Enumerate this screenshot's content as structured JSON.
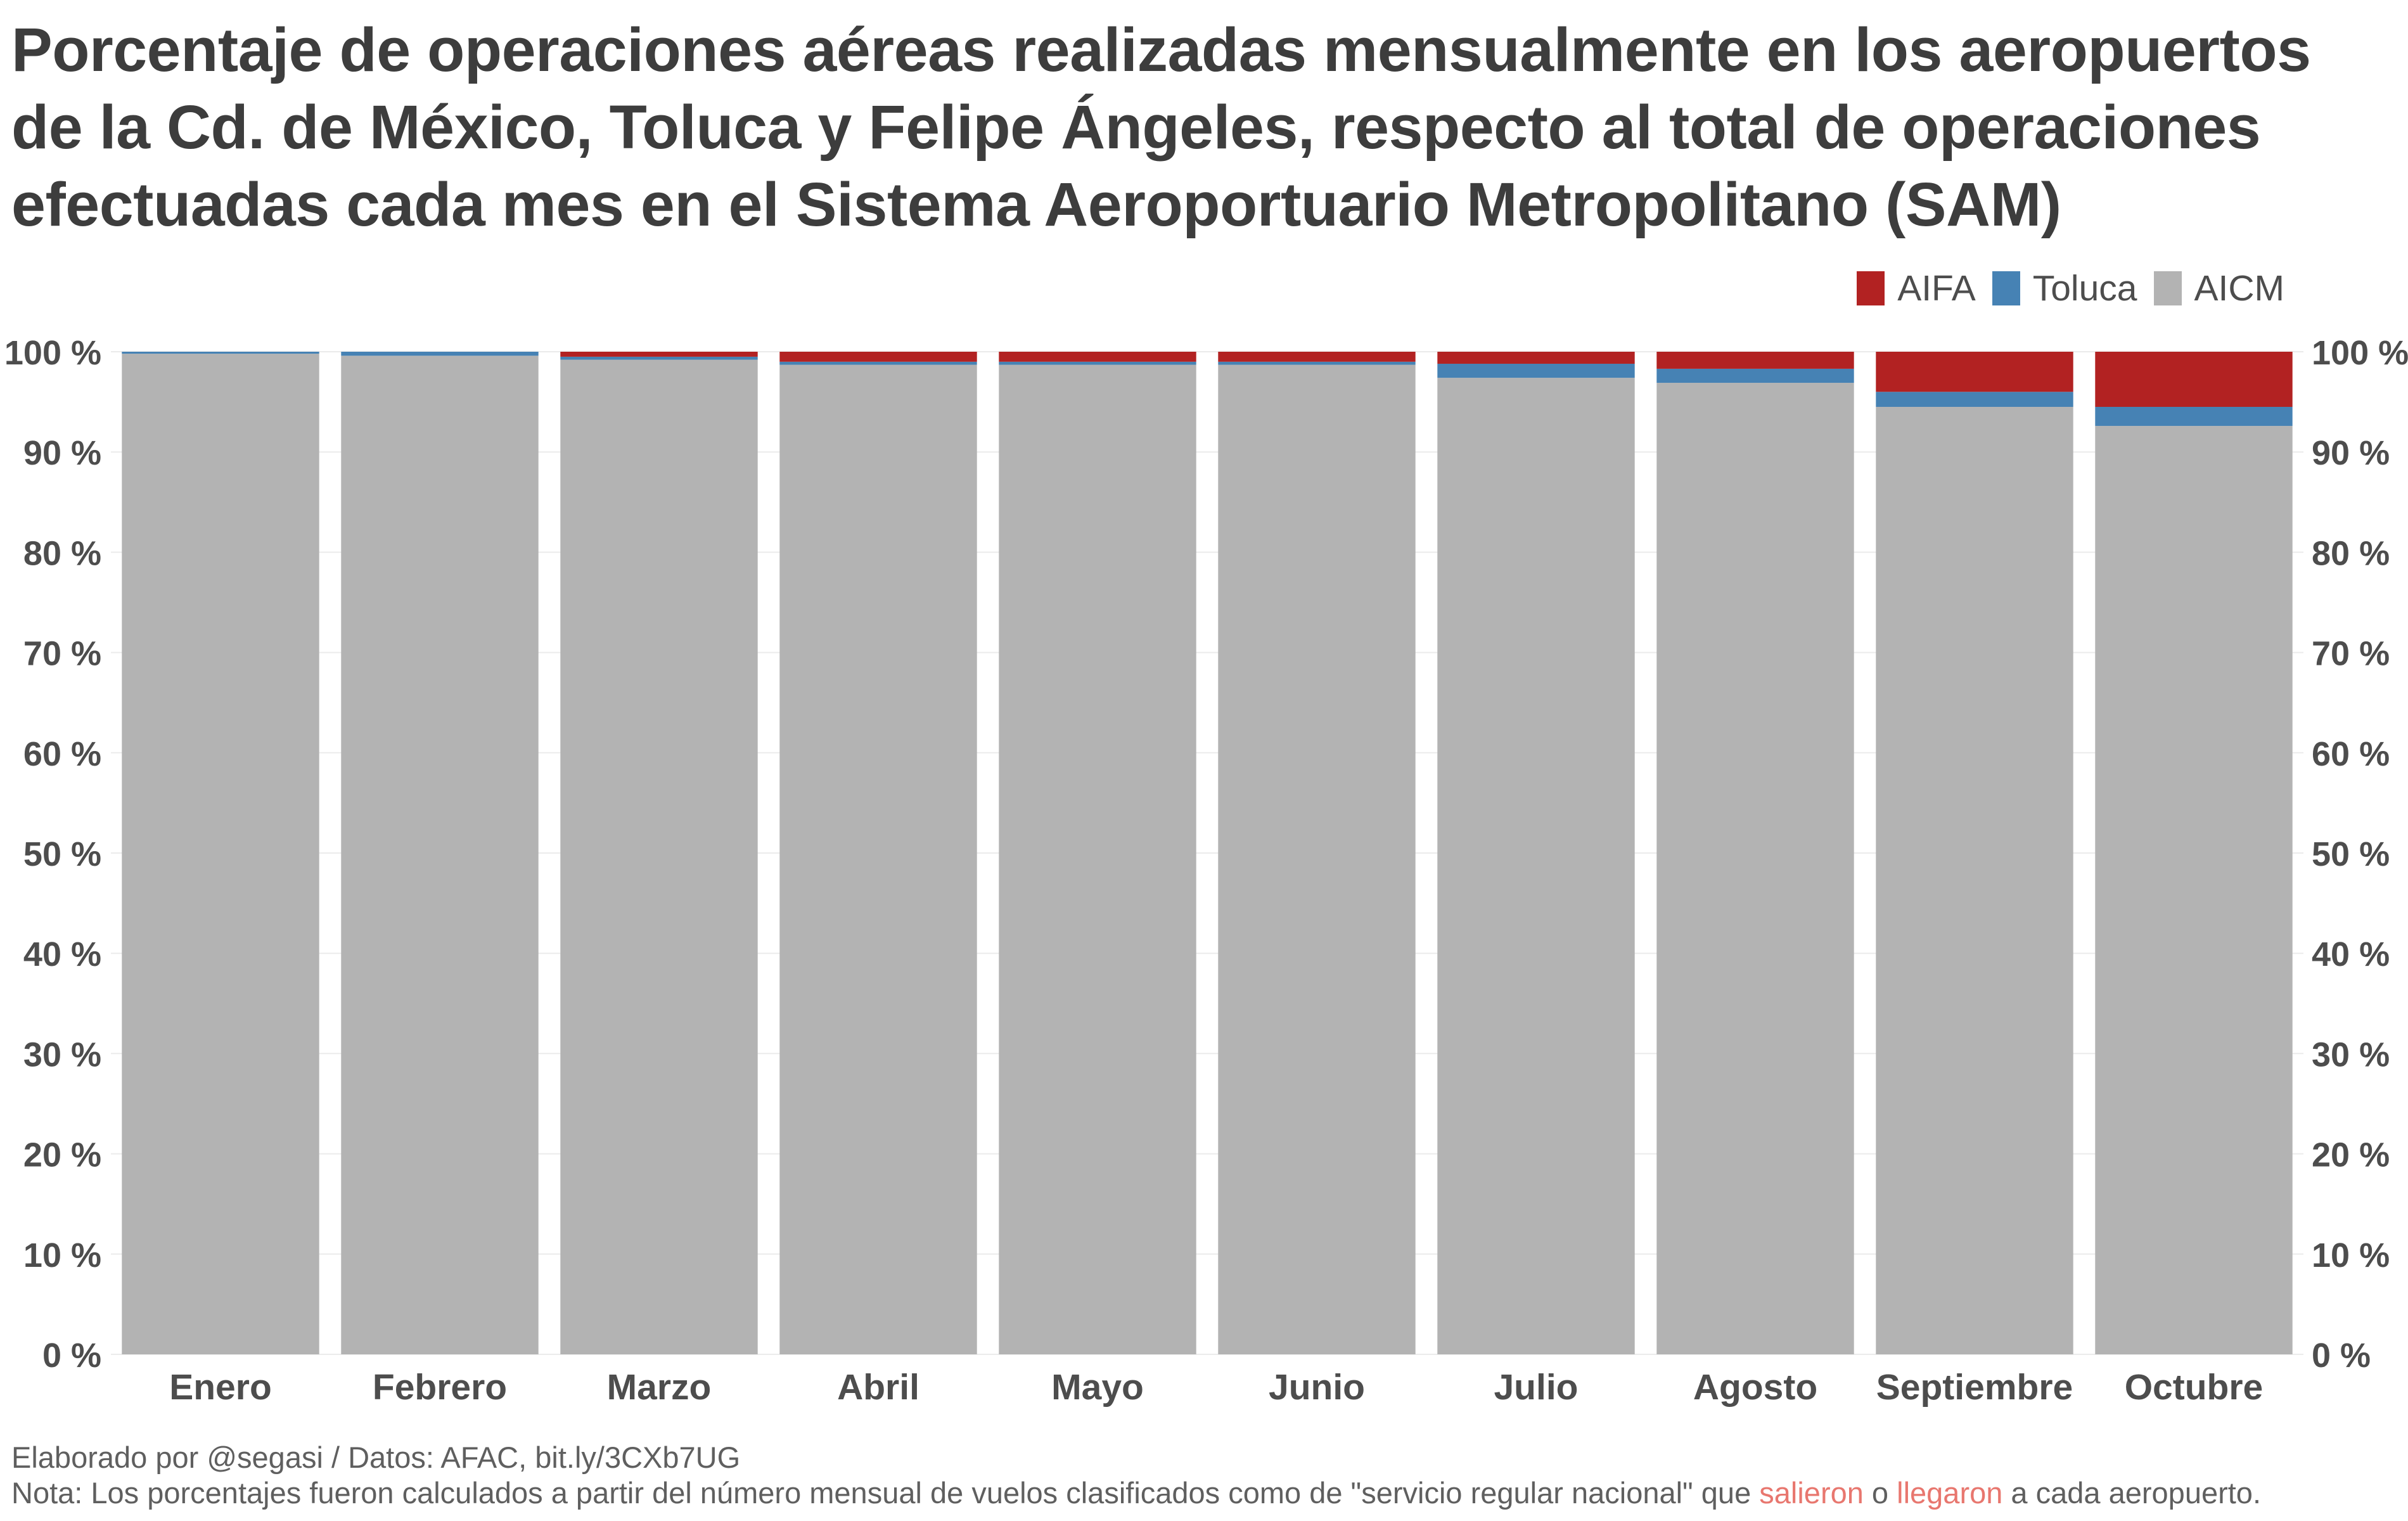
{
  "title": "Porcentaje de operaciones aéreas realizadas mensualmente en los aeropuertos de la Cd. de México, Toluca y Felipe Ángeles, respecto al total de operaciones efectuadas cada mes en el Sistema Aeroportuario Metropolitano (SAM)",
  "legend": [
    {
      "label": "AIFA",
      "color": "#b22222"
    },
    {
      "label": "Toluca",
      "color": "#4682b4"
    },
    {
      "label": "AICM",
      "color": "#b3b3b3"
    }
  ],
  "chart_data": {
    "type": "bar",
    "stacked": true,
    "categories": [
      "Enero",
      "Febrero",
      "Marzo",
      "Abril",
      "Mayo",
      "Junio",
      "Julio",
      "Agosto",
      "Septiembre",
      "Octubre"
    ],
    "series": [
      {
        "name": "AICM",
        "color": "#b3b3b3",
        "values": [
          99.8,
          99.6,
          99.2,
          98.7,
          98.7,
          98.7,
          97.4,
          96.9,
          94.5,
          92.6
        ]
      },
      {
        "name": "Toluca",
        "color": "#4682b4",
        "values": [
          0.2,
          0.4,
          0.3,
          0.3,
          0.3,
          0.3,
          1.4,
          1.4,
          1.5,
          1.9
        ]
      },
      {
        "name": "AIFA",
        "color": "#b22222",
        "values": [
          0.0,
          0.0,
          0.5,
          1.0,
          1.0,
          1.0,
          1.2,
          1.7,
          4.0,
          5.5
        ]
      }
    ],
    "yticks": [
      "0 %",
      "10 %",
      "20 %",
      "30 %",
      "40 %",
      "50 %",
      "60 %",
      "70 %",
      "80 %",
      "90 %",
      "100 %"
    ],
    "ylim": [
      0,
      100
    ],
    "grid": true,
    "legend_position": "top-right",
    "y_axis": "both sides"
  },
  "footer": {
    "credit": "Elaborado por @segasi / Datos: AFAC, bit.ly/3CXb7UG",
    "note_before": "Nota: Los porcentajes fueron calculados a partir del número mensual de vuelos clasificados como de \"servicio regular nacional\" que ",
    "word_departed": "salieron",
    "word_or": " o ",
    "word_arrived": "llegaron",
    "note_after": " a cada aeropuerto."
  }
}
